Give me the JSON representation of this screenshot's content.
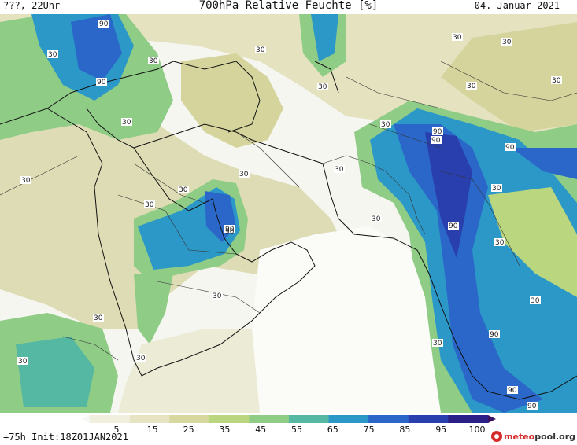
{
  "header": {
    "left": "???, 22Uhr",
    "title": "700hPa Relative Feuchte [%]",
    "date": "04. Januar 2021"
  },
  "footer": {
    "run_info": "+75h Init:18Z01JAN2021",
    "logo_part1": "meteo",
    "logo_part2": "pool.org"
  },
  "colorbar": {
    "labels": [
      "5",
      "15",
      "25",
      "35",
      "45",
      "55",
      "65",
      "75",
      "85",
      "95",
      "100"
    ],
    "colors": [
      "#f7f7f4",
      "#f1f0df",
      "#e6e4c3",
      "#d6d8a0",
      "#bad67e",
      "#8fcc86",
      "#55b8a3",
      "#2c98c8",
      "#2a67c9",
      "#2a3fae",
      "#2a1f86",
      "#3a1260"
    ]
  },
  "isolines": {
    "labels": [
      "90",
      "90",
      "30",
      "30",
      "30",
      "30",
      "30",
      "30",
      "30",
      "30",
      "30",
      "30",
      "30",
      "30",
      "90",
      "90",
      "30",
      "30",
      "30",
      "30",
      "90",
      "90",
      "30",
      "90",
      "30",
      "30",
      "90",
      "90",
      "30",
      "30",
      "30",
      "30",
      "90",
      "90",
      "30"
    ]
  }
}
